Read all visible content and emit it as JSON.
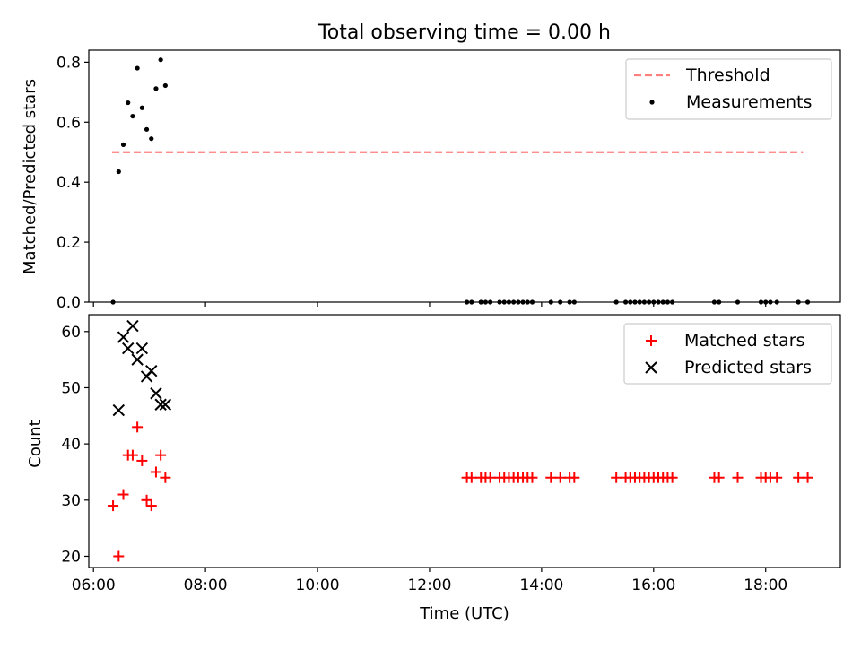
{
  "chart_data": [
    {
      "type": "scatter",
      "title": "Total observing time = 0.00 h",
      "xlabel": "",
      "ylabel": "Matched/Predicted stars",
      "ylim": [
        0,
        0.84
      ],
      "yticks": [
        "0.0",
        "0.2",
        "0.4",
        "0.6",
        "0.8"
      ],
      "legend_position": "upper right",
      "threshold": {
        "name": "Threshold",
        "y": 0.5,
        "x_start": "06:20",
        "x_end": "18:40",
        "color": "#ff7f7f"
      },
      "series": [
        {
          "name": "Measurements",
          "color": "#000000",
          "points": [
            {
              "x": "06:21",
              "y": 0.0
            },
            {
              "x": "06:27",
              "y": 0.435
            },
            {
              "x": "06:32",
              "y": 0.525
            },
            {
              "x": "06:37",
              "y": 0.665
            },
            {
              "x": "06:42",
              "y": 0.62
            },
            {
              "x": "06:47",
              "y": 0.78
            },
            {
              "x": "06:52",
              "y": 0.648
            },
            {
              "x": "06:57",
              "y": 0.576
            },
            {
              "x": "07:02",
              "y": 0.545
            },
            {
              "x": "07:07",
              "y": 0.712
            },
            {
              "x": "07:12",
              "y": 0.808
            },
            {
              "x": "07:17",
              "y": 0.722
            },
            {
              "x": "12:40",
              "y": 0.0
            },
            {
              "x": "12:45",
              "y": 0.0
            },
            {
              "x": "12:55",
              "y": 0.0
            },
            {
              "x": "13:00",
              "y": 0.0
            },
            {
              "x": "13:05",
              "y": 0.0
            },
            {
              "x": "13:15",
              "y": 0.0
            },
            {
              "x": "13:20",
              "y": 0.0
            },
            {
              "x": "13:25",
              "y": 0.0
            },
            {
              "x": "13:30",
              "y": 0.0
            },
            {
              "x": "13:35",
              "y": 0.0
            },
            {
              "x": "13:40",
              "y": 0.0
            },
            {
              "x": "13:45",
              "y": 0.0
            },
            {
              "x": "13:50",
              "y": 0.0
            },
            {
              "x": "14:10",
              "y": 0.0
            },
            {
              "x": "14:20",
              "y": 0.0
            },
            {
              "x": "14:30",
              "y": 0.0
            },
            {
              "x": "14:35",
              "y": 0.0
            },
            {
              "x": "15:20",
              "y": 0.0
            },
            {
              "x": "15:30",
              "y": 0.0
            },
            {
              "x": "15:35",
              "y": 0.0
            },
            {
              "x": "15:40",
              "y": 0.0
            },
            {
              "x": "15:45",
              "y": 0.0
            },
            {
              "x": "15:50",
              "y": 0.0
            },
            {
              "x": "15:55",
              "y": 0.0
            },
            {
              "x": "16:00",
              "y": 0.0
            },
            {
              "x": "16:05",
              "y": 0.0
            },
            {
              "x": "16:10",
              "y": 0.0
            },
            {
              "x": "16:15",
              "y": 0.0
            },
            {
              "x": "16:20",
              "y": 0.0
            },
            {
              "x": "17:05",
              "y": 0.0
            },
            {
              "x": "17:10",
              "y": 0.0
            },
            {
              "x": "17:30",
              "y": 0.0
            },
            {
              "x": "17:55",
              "y": 0.0
            },
            {
              "x": "18:00",
              "y": 0.0
            },
            {
              "x": "18:05",
              "y": 0.0
            },
            {
              "x": "18:12",
              "y": 0.0
            },
            {
              "x": "18:35",
              "y": 0.0
            },
            {
              "x": "18:45",
              "y": 0.0
            }
          ]
        }
      ]
    },
    {
      "type": "scatter",
      "title": "",
      "xlabel": "Time (UTC)",
      "ylabel": "Count",
      "ylim": [
        18,
        63
      ],
      "yticks": [
        "20",
        "30",
        "40",
        "50",
        "60"
      ],
      "xlim": [
        "05:55",
        "19:20"
      ],
      "xticks": [
        "06:00",
        "08:00",
        "10:00",
        "12:00",
        "14:00",
        "16:00",
        "18:00"
      ],
      "legend_position": "upper right",
      "series": [
        {
          "name": "Matched stars",
          "marker": "+",
          "color": "#ff0000",
          "points": [
            {
              "x": "06:21",
              "y": 29
            },
            {
              "x": "06:27",
              "y": 20
            },
            {
              "x": "06:32",
              "y": 31
            },
            {
              "x": "06:37",
              "y": 38
            },
            {
              "x": "06:42",
              "y": 38
            },
            {
              "x": "06:47",
              "y": 43
            },
            {
              "x": "06:52",
              "y": 37
            },
            {
              "x": "06:57",
              "y": 30
            },
            {
              "x": "07:02",
              "y": 29
            },
            {
              "x": "07:07",
              "y": 35
            },
            {
              "x": "07:12",
              "y": 38
            },
            {
              "x": "07:17",
              "y": 34
            },
            {
              "x": "12:40",
              "y": 34
            },
            {
              "x": "12:45",
              "y": 34
            },
            {
              "x": "12:55",
              "y": 34
            },
            {
              "x": "13:00",
              "y": 34
            },
            {
              "x": "13:05",
              "y": 34
            },
            {
              "x": "13:15",
              "y": 34
            },
            {
              "x": "13:20",
              "y": 34
            },
            {
              "x": "13:25",
              "y": 34
            },
            {
              "x": "13:30",
              "y": 34
            },
            {
              "x": "13:35",
              "y": 34
            },
            {
              "x": "13:40",
              "y": 34
            },
            {
              "x": "13:45",
              "y": 34
            },
            {
              "x": "13:50",
              "y": 34
            },
            {
              "x": "14:10",
              "y": 34
            },
            {
              "x": "14:20",
              "y": 34
            },
            {
              "x": "14:30",
              "y": 34
            },
            {
              "x": "14:35",
              "y": 34
            },
            {
              "x": "15:20",
              "y": 34
            },
            {
              "x": "15:30",
              "y": 34
            },
            {
              "x": "15:35",
              "y": 34
            },
            {
              "x": "15:40",
              "y": 34
            },
            {
              "x": "15:45",
              "y": 34
            },
            {
              "x": "15:50",
              "y": 34
            },
            {
              "x": "15:55",
              "y": 34
            },
            {
              "x": "16:00",
              "y": 34
            },
            {
              "x": "16:05",
              "y": 34
            },
            {
              "x": "16:10",
              "y": 34
            },
            {
              "x": "16:15",
              "y": 34
            },
            {
              "x": "16:20",
              "y": 34
            },
            {
              "x": "17:05",
              "y": 34
            },
            {
              "x": "17:10",
              "y": 34
            },
            {
              "x": "17:30",
              "y": 34
            },
            {
              "x": "17:55",
              "y": 34
            },
            {
              "x": "18:00",
              "y": 34
            },
            {
              "x": "18:05",
              "y": 34
            },
            {
              "x": "18:12",
              "y": 34
            },
            {
              "x": "18:35",
              "y": 34
            },
            {
              "x": "18:45",
              "y": 34
            }
          ]
        },
        {
          "name": "Predicted stars",
          "marker": "x",
          "color": "#000000",
          "points": [
            {
              "x": "06:27",
              "y": 46
            },
            {
              "x": "06:32",
              "y": 59
            },
            {
              "x": "06:37",
              "y": 57
            },
            {
              "x": "06:42",
              "y": 61
            },
            {
              "x": "06:47",
              "y": 55
            },
            {
              "x": "06:52",
              "y": 57
            },
            {
              "x": "06:57",
              "y": 52
            },
            {
              "x": "07:02",
              "y": 53
            },
            {
              "x": "07:07",
              "y": 49
            },
            {
              "x": "07:12",
              "y": 47
            },
            {
              "x": "07:17",
              "y": 47
            }
          ]
        }
      ]
    }
  ]
}
